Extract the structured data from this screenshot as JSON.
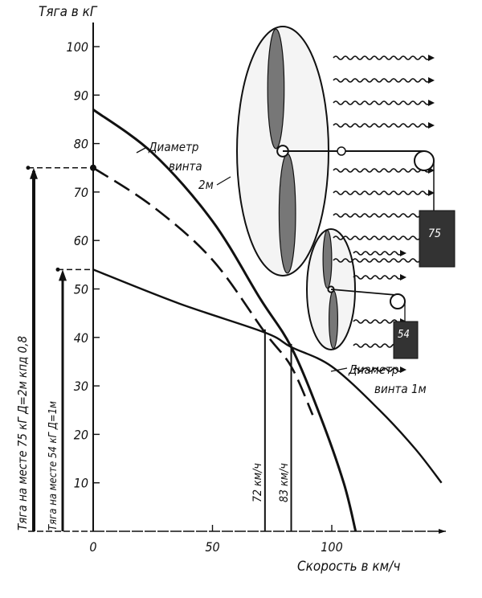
{
  "chart_data": {
    "type": "line",
    "ylabel": "Тяга в кГ",
    "xlabel": "Скорость в км/ч",
    "xlim": [
      0,
      150
    ],
    "ylim": [
      0,
      105
    ],
    "x_ticks": [
      "0",
      "50",
      "100"
    ],
    "x_tick_values": [
      0,
      50,
      100
    ],
    "y_ticks": [
      "10",
      "20",
      "30",
      "40",
      "50",
      "60",
      "70",
      "80",
      "90",
      "100"
    ],
    "y_tick_values": [
      10,
      20,
      30,
      40,
      50,
      60,
      70,
      80,
      90,
      100
    ],
    "grid": false,
    "series": [
      {
        "label": "Диаметр винта 2м",
        "style": "solid",
        "x": [
          0,
          25,
          50,
          70,
          83,
          95,
          105,
          110
        ],
        "y": [
          87,
          78,
          64,
          48,
          38,
          24,
          10,
          0
        ]
      },
      {
        "style": "dashed",
        "x": [
          0,
          25,
          50,
          72,
          83,
          92
        ],
        "y": [
          75,
          67,
          56,
          41,
          34,
          24
        ]
      },
      {
        "label": "Диаметр винта 1м",
        "style": "solid",
        "x": [
          0,
          36,
          72,
          83,
          100,
          120,
          135,
          146
        ],
        "y": [
          54,
          47,
          41,
          38,
          34,
          25,
          17,
          10
        ]
      }
    ],
    "vertical_markers": [
      {
        "x": 72,
        "y": 41,
        "label": "72 км/ч"
      },
      {
        "x": 83,
        "y": 38,
        "label": "83 км/ч"
      }
    ],
    "static_thrust": [
      {
        "value": 75,
        "label": "Тяга на месте 75 кГ  Д=2м  кпд 0,8"
      },
      {
        "value": 54,
        "label": "Тяга на месте 54 кГ  Д=1м"
      }
    ],
    "annotations": {
      "d2_line1": "Диаметр",
      "d2_line2": "винта",
      "d2_line3": "2м",
      "d1_line1": "Диаметр",
      "d1_line2": "винта 1м",
      "weight_big": "75",
      "weight_small": "54"
    }
  }
}
